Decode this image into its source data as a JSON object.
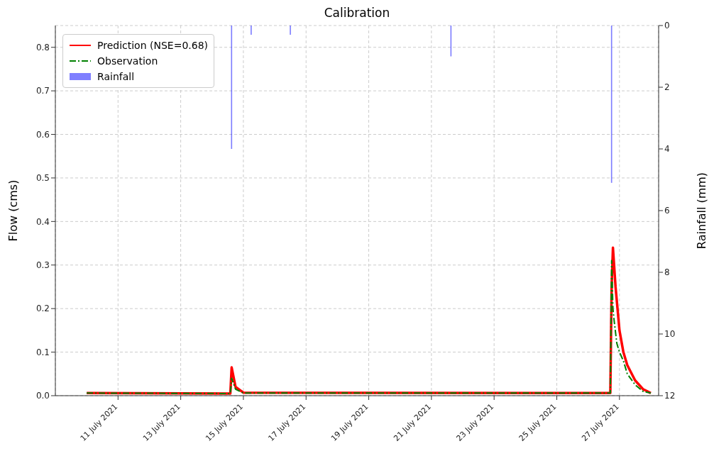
{
  "chart_data": {
    "type": "line",
    "title": "Calibration",
    "ylabel": "Flow (cms)",
    "y2label": "Rainfall (mm)",
    "xlim": [
      "2021-07-09T00:00",
      "2021-07-28T06:00"
    ],
    "xticks": [
      {
        "value": "2021-07-11",
        "label": "11 July 2021"
      },
      {
        "value": "2021-07-13",
        "label": "13 July 2021"
      },
      {
        "value": "2021-07-15",
        "label": "15 July 2021"
      },
      {
        "value": "2021-07-17",
        "label": "17 July 2021"
      },
      {
        "value": "2021-07-19",
        "label": "19 July 2021"
      },
      {
        "value": "2021-07-21",
        "label": "21 July 2021"
      },
      {
        "value": "2021-07-23",
        "label": "23 July 2021"
      },
      {
        "value": "2021-07-25",
        "label": "25 July 2021"
      },
      {
        "value": "2021-07-27",
        "label": "27 July 2021"
      }
    ],
    "ylim": [
      0,
      0.85
    ],
    "yticks": [
      {
        "value": 0,
        "label": "0.0"
      },
      0.1,
      0.2,
      0.3,
      0.4,
      0.5,
      0.6,
      0.7,
      0.8
    ],
    "y2lim": [
      12,
      0
    ],
    "y2ticks": [
      0,
      2,
      4,
      6,
      8,
      10,
      12
    ],
    "grid": true,
    "legend": "top left",
    "series": [
      {
        "name": "Prediction (NSE=0.68)",
        "color": "#ff0000",
        "line_style": "solid",
        "x": [
          "2021-07-10T00:00",
          "2021-07-14T14:00",
          "2021-07-14T15:00",
          "2021-07-14T18:00",
          "2021-07-15T00:00",
          "2021-07-26T17:00",
          "2021-07-26T18:00",
          "2021-07-26T19:00",
          "2021-07-26T21:00",
          "2021-07-27T00:00",
          "2021-07-27T03:00",
          "2021-07-27T06:00",
          "2021-07-27T12:00",
          "2021-07-27T18:00",
          "2021-07-28T00:00"
        ],
        "values": [
          0.006,
          0.005,
          0.065,
          0.02,
          0.007,
          0.006,
          0.25,
          0.34,
          0.25,
          0.15,
          0.1,
          0.07,
          0.035,
          0.015,
          0.006
        ]
      },
      {
        "name": "Observation",
        "color": "#008000",
        "line_style": "dashed",
        "x": [
          "2021-07-10T00:00",
          "2021-07-14T14:00",
          "2021-07-14T15:00",
          "2021-07-14T18:00",
          "2021-07-15T00:00",
          "2021-07-26T17:00",
          "2021-07-26T18:00",
          "2021-07-26T19:00",
          "2021-07-26T20:00",
          "2021-07-26T22:00",
          "2021-07-27T00:00",
          "2021-07-27T03:00",
          "2021-07-27T06:00",
          "2021-07-27T12:00",
          "2021-07-27T18:00",
          "2021-07-28T00:00"
        ],
        "values": [
          0.006,
          0.005,
          0.04,
          0.015,
          0.006,
          0.006,
          0.31,
          0.2,
          0.17,
          0.12,
          0.1,
          0.08,
          0.05,
          0.025,
          0.01,
          0.006
        ]
      },
      {
        "name": "Rainfall",
        "type": "bar",
        "axis": "y2",
        "color": "#0000ff",
        "x": [
          "2021-07-14T15:00",
          "2021-07-15T06:00",
          "2021-07-16T12:00",
          "2021-07-21T15:00",
          "2021-07-26T18:00"
        ],
        "values": [
          4.0,
          0.3,
          0.3,
          1.0,
          5.1
        ]
      }
    ]
  }
}
